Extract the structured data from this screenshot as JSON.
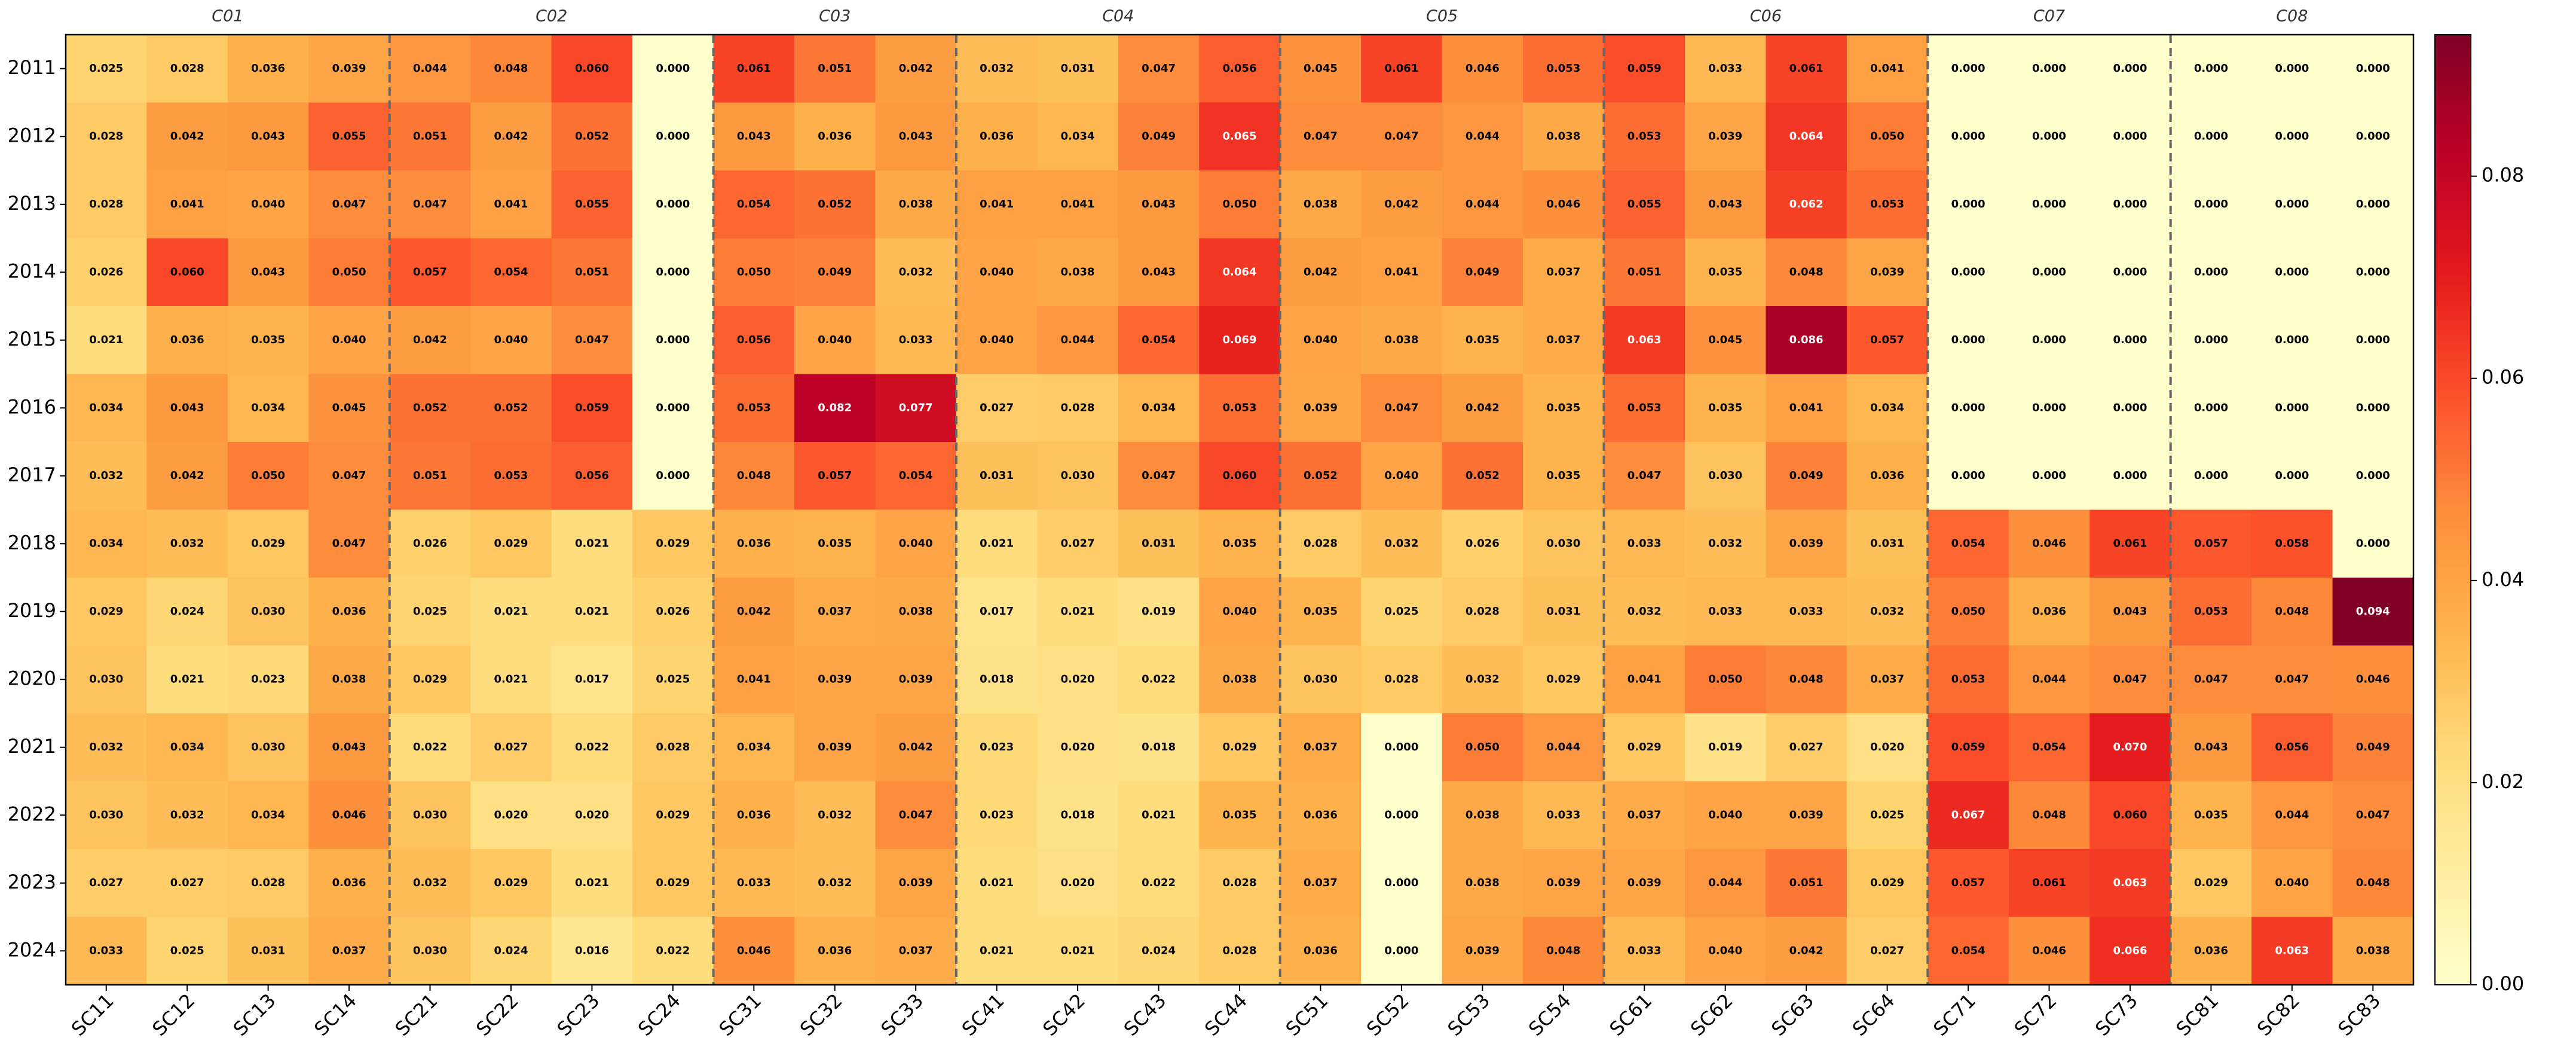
{
  "chart_data": {
    "type": "heatmap",
    "groups": [
      {
        "name": "C01",
        "categories": [
          "SC11",
          "SC12",
          "SC13",
          "SC14"
        ]
      },
      {
        "name": "C02",
        "categories": [
          "SC21",
          "SC22",
          "SC23",
          "SC24"
        ]
      },
      {
        "name": "C03",
        "categories": [
          "SC31",
          "SC32",
          "SC33"
        ]
      },
      {
        "name": "C04",
        "categories": [
          "SC41",
          "SC42",
          "SC43",
          "SC44"
        ]
      },
      {
        "name": "C05",
        "categories": [
          "SC51",
          "SC52",
          "SC53",
          "SC54"
        ]
      },
      {
        "name": "C06",
        "categories": [
          "SC61",
          "SC62",
          "SC63",
          "SC64"
        ]
      },
      {
        "name": "C07",
        "categories": [
          "SC71",
          "SC72",
          "SC73"
        ]
      },
      {
        "name": "C08",
        "categories": [
          "SC81",
          "SC82",
          "SC83"
        ]
      }
    ],
    "y_categories": [
      "2011",
      "2012",
      "2013",
      "2014",
      "2015",
      "2016",
      "2017",
      "2018",
      "2019",
      "2020",
      "2021",
      "2022",
      "2023",
      "2024"
    ],
    "values": [
      [
        0.025,
        0.028,
        0.036,
        0.039,
        0.044,
        0.048,
        0.06,
        0,
        0.061,
        0.051,
        0.042,
        0.032,
        0.031,
        0.047,
        0.056,
        0.045,
        0.061,
        0.046,
        0.053,
        0.059,
        0.033,
        0.061,
        0.041,
        0,
        0,
        0,
        0,
        0,
        0
      ],
      [
        0.028,
        0.042,
        0.043,
        0.055,
        0.051,
        0.042,
        0.052,
        0,
        0.043,
        0.036,
        0.043,
        0.036,
        0.034,
        0.049,
        0.065,
        0.047,
        0.047,
        0.044,
        0.038,
        0.053,
        0.039,
        0.064,
        0.05,
        0,
        0,
        0,
        0,
        0,
        0
      ],
      [
        0.028,
        0.041,
        0.04,
        0.047,
        0.047,
        0.041,
        0.055,
        0,
        0.054,
        0.052,
        0.038,
        0.041,
        0.041,
        0.043,
        0.05,
        0.038,
        0.042,
        0.044,
        0.046,
        0.055,
        0.043,
        0.062,
        0.053,
        0,
        0,
        0,
        0,
        0,
        0
      ],
      [
        0.026,
        0.06,
        0.043,
        0.05,
        0.057,
        0.054,
        0.051,
        0,
        0.05,
        0.049,
        0.032,
        0.04,
        0.038,
        0.043,
        0.064,
        0.042,
        0.041,
        0.049,
        0.037,
        0.051,
        0.035,
        0.048,
        0.039,
        0,
        0,
        0,
        0,
        0,
        0
      ],
      [
        0.021,
        0.036,
        0.035,
        0.04,
        0.042,
        0.04,
        0.047,
        0,
        0.056,
        0.04,
        0.033,
        0.04,
        0.044,
        0.054,
        0.069,
        0.04,
        0.038,
        0.035,
        0.037,
        0.063,
        0.045,
        0.086,
        0.057,
        0,
        0,
        0,
        0,
        0,
        0
      ],
      [
        0.034,
        0.043,
        0.034,
        0.045,
        0.052,
        0.052,
        0.059,
        0,
        0.053,
        0.082,
        0.077,
        0.027,
        0.028,
        0.034,
        0.053,
        0.039,
        0.047,
        0.042,
        0.035,
        0.053,
        0.035,
        0.041,
        0.034,
        0,
        0,
        0,
        0,
        0,
        0
      ],
      [
        0.032,
        0.042,
        0.05,
        0.047,
        0.051,
        0.053,
        0.056,
        0,
        0.048,
        0.057,
        0.054,
        0.031,
        0.03,
        0.047,
        0.06,
        0.052,
        0.04,
        0.052,
        0.035,
        0.047,
        0.03,
        0.049,
        0.036,
        0,
        0,
        0,
        0,
        0,
        0
      ],
      [
        0.034,
        0.032,
        0.029,
        0.047,
        0.026,
        0.029,
        0.021,
        0.029,
        0.036,
        0.035,
        0.04,
        0.021,
        0.027,
        0.031,
        0.035,
        0.028,
        0.032,
        0.026,
        0.03,
        0.033,
        0.032,
        0.039,
        0.031,
        0.054,
        0.046,
        0.061,
        0.057,
        0.058,
        0
      ],
      [
        0.029,
        0.024,
        0.03,
        0.036,
        0.025,
        0.021,
        0.021,
        0.026,
        0.042,
        0.037,
        0.038,
        0.017,
        0.021,
        0.019,
        0.04,
        0.035,
        0.025,
        0.028,
        0.031,
        0.032,
        0.033,
        0.033,
        0.032,
        0.05,
        0.036,
        0.043,
        0.053,
        0.048,
        0.094
      ],
      [
        0.03,
        0.021,
        0.023,
        0.038,
        0.029,
        0.021,
        0.017,
        0.025,
        0.041,
        0.039,
        0.039,
        0.018,
        0.02,
        0.022,
        0.038,
        0.03,
        0.028,
        0.032,
        0.029,
        0.041,
        0.05,
        0.048,
        0.037,
        0.053,
        0.044,
        0.047,
        0.047,
        0.047,
        0.046
      ],
      [
        0.032,
        0.034,
        0.03,
        0.043,
        0.022,
        0.027,
        0.022,
        0.028,
        0.034,
        0.039,
        0.042,
        0.023,
        0.02,
        0.018,
        0.029,
        0.037,
        0,
        0.05,
        0.044,
        0.029,
        0.019,
        0.027,
        0.02,
        0.059,
        0.054,
        0.07,
        0.043,
        0.056,
        0.049
      ],
      [
        0.03,
        0.032,
        0.034,
        0.046,
        0.03,
        0.02,
        0.02,
        0.029,
        0.036,
        0.032,
        0.047,
        0.023,
        0.018,
        0.021,
        0.035,
        0.036,
        0,
        0.038,
        0.033,
        0.037,
        0.04,
        0.039,
        0.025,
        0.067,
        0.048,
        0.06,
        0.035,
        0.044,
        0.047
      ],
      [
        0.027,
        0.027,
        0.028,
        0.036,
        0.032,
        0.029,
        0.021,
        0.029,
        0.033,
        0.032,
        0.039,
        0.021,
        0.02,
        0.022,
        0.028,
        0.037,
        0,
        0.038,
        0.039,
        0.039,
        0.044,
        0.051,
        0.029,
        0.057,
        0.061,
        0.063,
        0.029,
        0.04,
        0.048
      ],
      [
        0.033,
        0.025,
        0.031,
        0.037,
        0.03,
        0.024,
        0.016,
        0.022,
        0.046,
        0.036,
        0.037,
        0.021,
        0.021,
        0.024,
        0.028,
        0.036,
        0,
        0.039,
        0.048,
        0.033,
        0.04,
        0.042,
        0.027,
        0.054,
        0.046,
        0.066,
        0.036,
        0.063,
        0.038
      ]
    ],
    "value_labels": [
      [
        "0.025",
        "0.028",
        "0.036",
        "0.039",
        "0.044",
        "0.048",
        "0.060",
        "0.000",
        "0.061",
        "0.051",
        "0.042",
        "0.032",
        "0.031",
        "0.047",
        "0.056",
        "0.045",
        "0.061",
        "0.046",
        "0.053",
        "0.059",
        "0.033",
        "0.061",
        "0.041",
        "0.000",
        "0.000",
        "0.000",
        "0.000",
        "0.000",
        "0.000"
      ],
      [
        "0.028",
        "0.042",
        "0.043",
        "0.055",
        "0.051",
        "0.042",
        "0.052",
        "0.000",
        "0.043",
        "0.036",
        "0.043",
        "0.036",
        "0.034",
        "0.049",
        "0.065",
        "0.047",
        "0.047",
        "0.044",
        "0.038",
        "0.053",
        "0.039",
        "0.064",
        "0.050",
        "0.000",
        "0.000",
        "0.000",
        "0.000",
        "0.000",
        "0.000"
      ],
      [
        "0.028",
        "0.041",
        "0.040",
        "0.047",
        "0.047",
        "0.041",
        "0.055",
        "0.000",
        "0.054",
        "0.052",
        "0.038",
        "0.041",
        "0.041",
        "0.043",
        "0.050",
        "0.038",
        "0.042",
        "0.044",
        "0.046",
        "0.055",
        "0.043",
        "0.062",
        "0.053",
        "0.000",
        "0.000",
        "0.000",
        "0.000",
        "0.000",
        "0.000"
      ],
      [
        "0.026",
        "0.060",
        "0.043",
        "0.050",
        "0.057",
        "0.054",
        "0.051",
        "0.000",
        "0.050",
        "0.049",
        "0.032",
        "0.040",
        "0.038",
        "0.043",
        "0.064",
        "0.042",
        "0.041",
        "0.049",
        "0.037",
        "0.051",
        "0.035",
        "0.048",
        "0.039",
        "0.000",
        "0.000",
        "0.000",
        "0.000",
        "0.000",
        "0.000"
      ],
      [
        "0.021",
        "0.036",
        "0.035",
        "0.040",
        "0.042",
        "0.040",
        "0.047",
        "0.000",
        "0.056",
        "0.040",
        "0.033",
        "0.040",
        "0.044",
        "0.054",
        "0.069",
        "0.040",
        "0.038",
        "0.035",
        "0.037",
        "0.063",
        "0.045",
        "0.086",
        "0.057",
        "0.000",
        "0.000",
        "0.000",
        "0.000",
        "0.000",
        "0.000"
      ],
      [
        "0.034",
        "0.043",
        "0.034",
        "0.045",
        "0.052",
        "0.052",
        "0.059",
        "0.000",
        "0.053",
        "0.082",
        "0.077",
        "0.027",
        "0.028",
        "0.034",
        "0.053",
        "0.039",
        "0.047",
        "0.042",
        "0.035",
        "0.053",
        "0.035",
        "0.041",
        "0.034",
        "0.000",
        "0.000",
        "0.000",
        "0.000",
        "0.000",
        "0.000"
      ],
      [
        "0.032",
        "0.042",
        "0.050",
        "0.047",
        "0.051",
        "0.053",
        "0.056",
        "0.000",
        "0.048",
        "0.057",
        "0.054",
        "0.031",
        "0.030",
        "0.047",
        "0.060",
        "0.052",
        "0.040",
        "0.052",
        "0.035",
        "0.047",
        "0.030",
        "0.049",
        "0.036",
        "0.000",
        "0.000",
        "0.000",
        "0.000",
        "0.000",
        "0.000"
      ],
      [
        "0.034",
        "0.032",
        "0.029",
        "0.047",
        "0.026",
        "0.029",
        "0.021",
        "0.029",
        "0.036",
        "0.035",
        "0.040",
        "0.021",
        "0.027",
        "0.031",
        "0.035",
        "0.028",
        "0.032",
        "0.026",
        "0.030",
        "0.033",
        "0.032",
        "0.039",
        "0.031",
        "0.054",
        "0.046",
        "0.061",
        "0.057",
        "0.058",
        "0.000"
      ],
      [
        "0.029",
        "0.024",
        "0.030",
        "0.036",
        "0.025",
        "0.021",
        "0.021",
        "0.026",
        "0.042",
        "0.037",
        "0.038",
        "0.017",
        "0.021",
        "0.019",
        "0.040",
        "0.035",
        "0.025",
        "0.028",
        "0.031",
        "0.032",
        "0.033",
        "0.033",
        "0.032",
        "0.050",
        "0.036",
        "0.043",
        "0.053",
        "0.048",
        "0.094"
      ],
      [
        "0.030",
        "0.021",
        "0.023",
        "0.038",
        "0.029",
        "0.021",
        "0.017",
        "0.025",
        "0.041",
        "0.039",
        "0.039",
        "0.018",
        "0.020",
        "0.022",
        "0.038",
        "0.030",
        "0.028",
        "0.032",
        "0.029",
        "0.041",
        "0.050",
        "0.048",
        "0.037",
        "0.053",
        "0.044",
        "0.047",
        "0.047",
        "0.047",
        "0.046"
      ],
      [
        "0.032",
        "0.034",
        "0.030",
        "0.043",
        "0.022",
        "0.027",
        "0.022",
        "0.028",
        "0.034",
        "0.039",
        "0.042",
        "0.023",
        "0.020",
        "0.018",
        "0.029",
        "0.037",
        "0.000",
        "0.050",
        "0.044",
        "0.029",
        "0.019",
        "0.027",
        "0.020",
        "0.059",
        "0.054",
        "0.070",
        "0.043",
        "0.056",
        "0.049"
      ],
      [
        "0.030",
        "0.032",
        "0.034",
        "0.046",
        "0.030",
        "0.020",
        "0.020",
        "0.029",
        "0.036",
        "0.032",
        "0.047",
        "0.023",
        "0.018",
        "0.021",
        "0.035",
        "0.036",
        "0.000",
        "0.038",
        "0.033",
        "0.037",
        "0.040",
        "0.039",
        "0.025",
        "0.067",
        "0.048",
        "0.060",
        "0.035",
        "0.044",
        "0.047"
      ],
      [
        "0.027",
        "0.027",
        "0.028",
        "0.036",
        "0.032",
        "0.029",
        "0.021",
        "0.029",
        "0.033",
        "0.032",
        "0.039",
        "0.021",
        "0.020",
        "0.022",
        "0.028",
        "0.037",
        "0.000",
        "0.038",
        "0.039",
        "0.039",
        "0.044",
        "0.051",
        "0.029",
        "0.057",
        "0.061",
        "0.063",
        "0.029",
        "0.040",
        "0.048"
      ],
      [
        "0.033",
        "0.025",
        "0.031",
        "0.037",
        "0.030",
        "0.024",
        "0.016",
        "0.022",
        "0.046",
        "0.036",
        "0.037",
        "0.021",
        "0.021",
        "0.024",
        "0.028",
        "0.036",
        "0.000",
        "0.039",
        "0.048",
        "0.033",
        "0.040",
        "0.042",
        "0.027",
        "0.054",
        "0.046",
        "0.066",
        "0.036",
        "0.063",
        "0.038"
      ]
    ],
    "colormap": "YlOrRd",
    "clim": [
      0,
      0.094
    ],
    "cticks": [
      {
        "value": 0,
        "label": "0.00"
      },
      {
        "value": 0.02,
        "label": "0.02"
      },
      {
        "value": 0.04,
        "label": "0.04"
      },
      {
        "value": 0.06,
        "label": "0.06"
      },
      {
        "value": 0.08,
        "label": "0.08"
      }
    ]
  }
}
